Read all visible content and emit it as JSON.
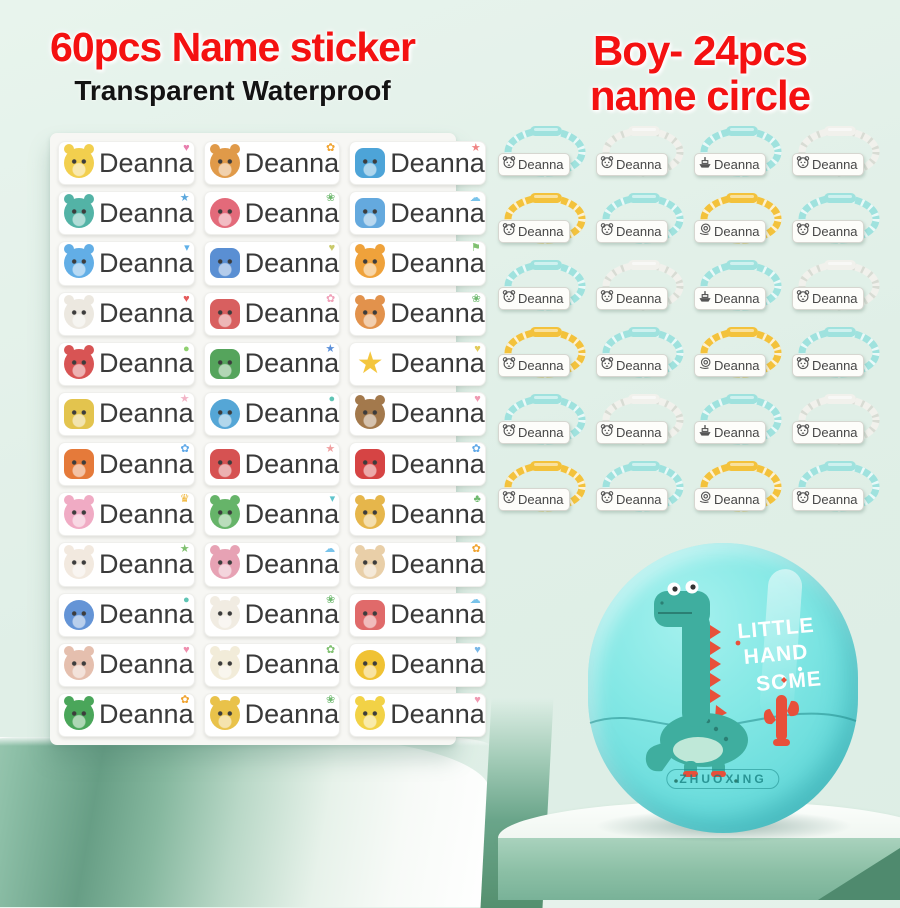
{
  "titles": {
    "left_line1": "60pcs Name sticker",
    "left_line2": "Transparent Waterproof",
    "right_line1": "Boy- 24pcs",
    "right_line2": "name circle",
    "accent_red": "#f41111",
    "text_black": "#131313"
  },
  "icon_glyphs": {
    "heart": "♥",
    "star": "★",
    "cloud": "☁",
    "paw": "✿",
    "leaf": "❀",
    "dot": "●",
    "drop": "▾",
    "crown": "♛",
    "flag": "⚑",
    "tree": "♣"
  },
  "sticker_sheet": {
    "name_label": "Deanna",
    "columns": 3,
    "rows": 12,
    "stickers": [
      {
        "icon": "chick",
        "color": "#f2cf4e",
        "decor": "heart",
        "decor_color": "#e87fae"
      },
      {
        "icon": "tiger-reading",
        "color": "#e09a49",
        "decor": "paw",
        "decor_color": "#f0a32f"
      },
      {
        "icon": "sailboat",
        "color": "#4da4d8",
        "decor": "star",
        "decor_color": "#ef8484"
      },
      {
        "icon": "dinosaur-teal",
        "color": "#53b3a6",
        "decor": "star",
        "decor_color": "#5aa7dd"
      },
      {
        "icon": "balloons",
        "color": "#e36a7a",
        "decor": "leaf",
        "decor_color": "#6fb96f"
      },
      {
        "icon": "airplane",
        "color": "#64a9de",
        "decor": "cloud",
        "decor_color": "#79c3ea"
      },
      {
        "icon": "bird",
        "color": "#62aee6",
        "decor": "drop",
        "decor_color": "#5fb0e8"
      },
      {
        "icon": "police-car",
        "color": "#5a8fd3",
        "decor": "heart",
        "decor_color": "#c9c96a"
      },
      {
        "icon": "lion",
        "color": "#efa23b",
        "decor": "flag",
        "decor_color": "#7fc06f"
      },
      {
        "icon": "hen",
        "color": "#ece8e0",
        "decor": "heart",
        "decor_color": "#e45b5b"
      },
      {
        "icon": "windmill",
        "color": "#d85f5f",
        "decor": "paw",
        "decor_color": "#f0a0b8"
      },
      {
        "icon": "shiba-dog",
        "color": "#e2924c",
        "decor": "leaf",
        "decor_color": "#6fb96f"
      },
      {
        "icon": "girl-ball",
        "color": "#d85454",
        "decor": "dot",
        "decor_color": "#8fd06f"
      },
      {
        "icon": "palm-island",
        "color": "#55a45c",
        "decor": "star",
        "decor_color": "#5a8fd9"
      },
      {
        "icon": "star",
        "color": "#f4c63e",
        "decor": "heart",
        "decor_color": "#e3cb5a"
      },
      {
        "icon": "helicopter",
        "color": "#e3c44e",
        "decor": "star",
        "decor_color": "#f2b4c6"
      },
      {
        "icon": "whale",
        "color": "#55a6d6",
        "decor": "dot",
        "decor_color": "#5fc4b4"
      },
      {
        "icon": "monkey",
        "color": "#a3794c",
        "decor": "heart",
        "decor_color": "#ef9ab2"
      },
      {
        "icon": "hot-air-balloon",
        "color": "#e57a3a",
        "decor": "paw",
        "decor_color": "#5fa8e8"
      },
      {
        "icon": "sailboat-red",
        "color": "#d65252",
        "decor": "star",
        "decor_color": "#f0a0a0"
      },
      {
        "icon": "rocket",
        "color": "#d64444",
        "decor": "paw",
        "decor_color": "#5fa8e8"
      },
      {
        "icon": "bunny-pink",
        "color": "#f0abc4",
        "decor": "crown",
        "decor_color": "#f0b434"
      },
      {
        "icon": "dinosaur-green",
        "color": "#66b469",
        "decor": "drop",
        "decor_color": "#5fc4cc"
      },
      {
        "icon": "giraffe",
        "color": "#e6b64b",
        "decor": "tree",
        "decor_color": "#6fb96f"
      },
      {
        "icon": "cat-white",
        "color": "#f2e9df",
        "decor": "star",
        "decor_color": "#7fc06f"
      },
      {
        "icon": "bear-pink",
        "color": "#e7a2b4",
        "decor": "cloud",
        "decor_color": "#79c3ea"
      },
      {
        "icon": "hamster",
        "color": "#e9cfa8",
        "decor": "paw",
        "decor_color": "#f0a32f"
      },
      {
        "icon": "whale-blue",
        "color": "#6494d6",
        "decor": "dot",
        "decor_color": "#5fc4b4"
      },
      {
        "icon": "bear-white",
        "color": "#f1ece2",
        "decor": "leaf",
        "decor_color": "#6fb96f"
      },
      {
        "icon": "rainbow",
        "color": "#e06a6a",
        "decor": "cloud",
        "decor_color": "#79c3ea"
      },
      {
        "icon": "sailor-pig",
        "color": "#e5bfae",
        "decor": "heart",
        "decor_color": "#ef8fae"
      },
      {
        "icon": "sheep",
        "color": "#f2ecd9",
        "decor": "paw",
        "decor_color": "#7fc06f"
      },
      {
        "icon": "duck",
        "color": "#f0c233",
        "decor": "heart",
        "decor_color": "#79b8e8"
      },
      {
        "icon": "dino-green2",
        "color": "#4aa65a",
        "decor": "paw",
        "decor_color": "#f0a32f"
      },
      {
        "icon": "tiger-yellow",
        "color": "#e9c24a",
        "decor": "leaf",
        "decor_color": "#6fb96f"
      },
      {
        "icon": "chick-yellow",
        "color": "#f2d246",
        "decor": "heart",
        "decor_color": "#ef9ab2"
      }
    ]
  },
  "name_tags": {
    "name_label": "Deanna",
    "columns": 4,
    "rows": 6,
    "cord_colors": {
      "teal": "#9fe2de",
      "white": "#f1f1ec",
      "yellow": "#f3c23c"
    },
    "tags": [
      {
        "cord": "teal",
        "icon": "puppy"
      },
      {
        "cord": "white",
        "icon": "bear"
      },
      {
        "cord": "teal",
        "icon": "ship"
      },
      {
        "cord": "white",
        "icon": "tiger"
      },
      {
        "cord": "yellow",
        "icon": "lion"
      },
      {
        "cord": "teal",
        "icon": "cat"
      },
      {
        "cord": "yellow",
        "icon": "snail"
      },
      {
        "cord": "teal",
        "icon": "panda"
      },
      {
        "cord": "teal",
        "icon": "puppy"
      },
      {
        "cord": "white",
        "icon": "bear"
      },
      {
        "cord": "teal",
        "icon": "ship"
      },
      {
        "cord": "white",
        "icon": "tiger"
      },
      {
        "cord": "yellow",
        "icon": "lion"
      },
      {
        "cord": "teal",
        "icon": "cat"
      },
      {
        "cord": "yellow",
        "icon": "snail"
      },
      {
        "cord": "teal",
        "icon": "panda"
      },
      {
        "cord": "teal",
        "icon": "puppy"
      },
      {
        "cord": "white",
        "icon": "bear"
      },
      {
        "cord": "teal",
        "icon": "ship"
      },
      {
        "cord": "white",
        "icon": "tiger"
      },
      {
        "cord": "yellow",
        "icon": "lion"
      },
      {
        "cord": "teal",
        "icon": "cat"
      },
      {
        "cord": "yellow",
        "icon": "snail"
      },
      {
        "cord": "teal",
        "icon": "panda"
      }
    ]
  },
  "case": {
    "brand": "ZHUOXING",
    "slogan_line1": "LITTLE",
    "slogan_line2": "HAND",
    "slogan_line3": "SOME",
    "body_color": "#7de7e4",
    "dino_color": "#3fae9f",
    "spike_color": "#e8503a"
  },
  "scene": {
    "background": "#e0efe7",
    "pedestal_teal": "#8fc2ab",
    "deep_teal": "#55906f"
  }
}
